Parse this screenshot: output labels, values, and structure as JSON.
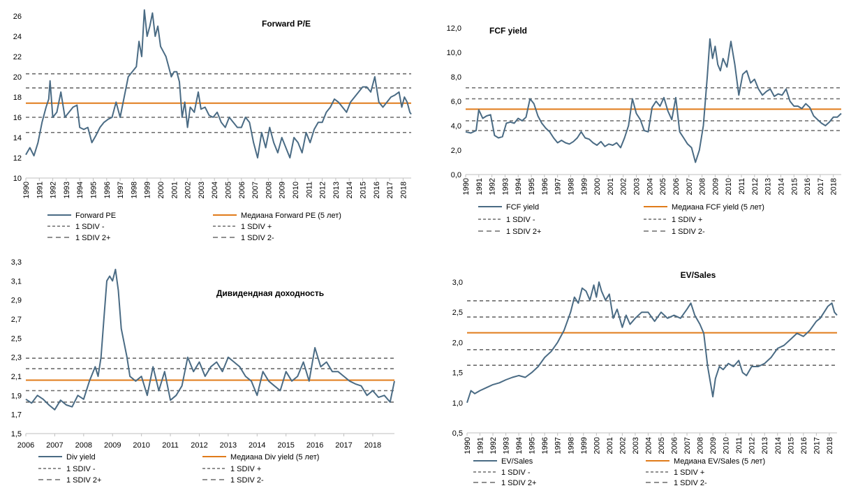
{
  "chart_data": [
    {
      "type": "line",
      "title": "Forward P/E",
      "ylim": [
        10,
        26
      ],
      "y_ticks": [
        "10",
        "12",
        "14",
        "16",
        "18",
        "20",
        "22",
        "24",
        "26"
      ],
      "x_range": [
        1990,
        2018.6
      ],
      "x_ticks": [
        "1990",
        "1991",
        "1992",
        "1993",
        "1994",
        "1995",
        "1996",
        "1997",
        "1998",
        "1999",
        "2000",
        "2001",
        "2002",
        "2003",
        "2004",
        "2005",
        "2006",
        "2007",
        "2008",
        "2009",
        "2010",
        "2011",
        "2012",
        "2013",
        "2014",
        "2015",
        "2016",
        "2017",
        "2018"
      ],
      "x_tick_rotation": "vertical",
      "grid": false,
      "legend_position": "bottom",
      "series": [
        {
          "name": "Forward PE",
          "style": "solid",
          "color": "#4a6b84",
          "x": [
            1990,
            1990.3,
            1990.6,
            1990.9,
            1991.2,
            1991.5,
            1991.7,
            1991.8,
            1992,
            1992.3,
            1992.6,
            1992.9,
            1993.2,
            1993.5,
            1993.8,
            1994,
            1994.3,
            1994.6,
            1994.9,
            1995.2,
            1995.5,
            1995.8,
            1996.1,
            1996.4,
            1996.7,
            1997,
            1997.3,
            1997.6,
            1997.9,
            1998.2,
            1998.4,
            1998.6,
            1998.8,
            1999,
            1999.2,
            1999.4,
            1999.6,
            1999.8,
            2000,
            2000.2,
            2000.4,
            2000.6,
            2000.8,
            2001,
            2001.2,
            2001.4,
            2001.6,
            2001.8,
            2002,
            2002.2,
            2002.5,
            2002.8,
            2003,
            2003.3,
            2003.6,
            2003.9,
            2004.2,
            2004.5,
            2004.8,
            2005.1,
            2005.4,
            2005.7,
            2006,
            2006.3,
            2006.6,
            2006.9,
            2007.2,
            2007.5,
            2007.8,
            2008.1,
            2008.4,
            2008.7,
            2009,
            2009.3,
            2009.6,
            2009.9,
            2010.2,
            2010.5,
            2010.8,
            2011.1,
            2011.4,
            2011.7,
            2012,
            2012.3,
            2012.6,
            2012.9,
            2013.2,
            2013.5,
            2013.8,
            2014.1,
            2014.4,
            2014.7,
            2015,
            2015.3,
            2015.6,
            2015.9,
            2016.2,
            2016.5,
            2016.8,
            2017.1,
            2017.4,
            2017.7,
            2017.9,
            2018.1,
            2018.3,
            2018.5,
            2018.6
          ],
          "y": [
            12.3,
            13,
            12.2,
            13.5,
            15.5,
            17,
            17.8,
            19.6,
            16,
            16.5,
            18.5,
            16,
            16.5,
            17,
            17.2,
            15,
            14.8,
            15,
            13.5,
            14.2,
            15,
            15.5,
            15.8,
            16,
            17.5,
            16,
            18,
            20,
            20.5,
            21,
            23.5,
            22,
            26.6,
            24,
            25,
            26.3,
            24,
            25,
            23,
            22.5,
            22,
            21,
            20,
            20.5,
            20.5,
            19.5,
            16,
            17.5,
            15,
            17,
            16.5,
            18.5,
            16.8,
            17,
            16.2,
            16,
            16.5,
            15.5,
            15,
            16,
            15.5,
            15,
            15,
            16,
            15.5,
            13.5,
            12,
            14.5,
            13,
            15,
            13.5,
            12.5,
            14,
            13,
            12,
            14,
            13.5,
            12.5,
            14.5,
            13.5,
            14.8,
            15.5,
            15.5,
            16.5,
            17,
            17.8,
            17.5,
            17,
            16.5,
            17.5,
            18,
            18.5,
            19,
            19,
            18.5,
            20,
            17.5,
            17,
            17.5,
            18,
            18.2,
            18.5,
            17,
            18,
            17.5,
            16.5,
            16.3
          ]
        },
        {
          "name": "Медиана Forward PE  (5 лет)",
          "style": "median",
          "color": "#e07b1a",
          "value": 17.4
        },
        {
          "name": "1 SDIV -",
          "style": "dash",
          "value": 16.0
        },
        {
          "name": "1 SDIV +",
          "style": "dash",
          "value": 18.9
        },
        {
          "name": "1 SDIV 2+",
          "style": "dash",
          "value": 20.3
        },
        {
          "name": "1 SDIV 2-",
          "style": "dash",
          "value": 14.5
        }
      ]
    },
    {
      "type": "line",
      "title": "FCF yield",
      "ylim": [
        0,
        12
      ],
      "y_ticks": [
        "0,0",
        "2,0",
        "4,0",
        "6,0",
        "8,0",
        "10,0",
        "12,0"
      ],
      "x_range": [
        1990,
        2018.6
      ],
      "x_ticks": [
        "1990",
        "1991",
        "1992",
        "1993",
        "1994",
        "1995",
        "1996",
        "1997",
        "1998",
        "1999",
        "2000",
        "2001",
        "2002",
        "2003",
        "2004",
        "2005",
        "2006",
        "2007",
        "2008",
        "2009",
        "2010",
        "2011",
        "2012",
        "2013",
        "2014",
        "2015",
        "2016",
        "2017",
        "2018"
      ],
      "x_tick_rotation": "vertical",
      "grid": false,
      "legend_position": "bottom",
      "series": [
        {
          "name": "FCF yield",
          "style": "solid",
          "color": "#4a6b84",
          "x": [
            1990,
            1990.4,
            1990.8,
            1991,
            1991.3,
            1991.6,
            1991.9,
            1992.2,
            1992.5,
            1992.8,
            1993.1,
            1993.4,
            1993.7,
            1994,
            1994.3,
            1994.6,
            1994.9,
            1995.2,
            1995.5,
            1995.8,
            1996.1,
            1996.4,
            1996.7,
            1997,
            1997.3,
            1997.6,
            1997.9,
            1998.2,
            1998.5,
            1998.8,
            1999.1,
            1999.4,
            1999.7,
            2000,
            2000.3,
            2000.6,
            2000.9,
            2001.2,
            2001.5,
            2001.8,
            2002.1,
            2002.4,
            2002.7,
            2003,
            2003.3,
            2003.6,
            2003.9,
            2004.2,
            2004.5,
            2004.8,
            2005.1,
            2005.4,
            2005.7,
            2006,
            2006.3,
            2006.6,
            2006.9,
            2007.2,
            2007.5,
            2007.8,
            2008.1,
            2008.4,
            2008.6,
            2008.8,
            2009,
            2009.2,
            2009.4,
            2009.6,
            2009.9,
            2010.2,
            2010.5,
            2010.8,
            2011.1,
            2011.4,
            2011.7,
            2012,
            2012.3,
            2012.6,
            2012.9,
            2013.2,
            2013.5,
            2013.8,
            2014.1,
            2014.4,
            2014.7,
            2015,
            2015.3,
            2015.6,
            2015.9,
            2016.2,
            2016.5,
            2016.8,
            2017.1,
            2017.4,
            2017.7,
            2018,
            2018.3,
            2018.6
          ],
          "y": [
            3.5,
            3.4,
            3.6,
            5.3,
            4.6,
            4.8,
            4.9,
            3.2,
            3.0,
            3.1,
            4.2,
            4.3,
            4.2,
            4.6,
            4.4,
            4.7,
            6.2,
            5.8,
            4.8,
            4.2,
            3.8,
            3.5,
            3.0,
            2.6,
            2.8,
            2.6,
            2.5,
            2.7,
            3.0,
            3.5,
            3.0,
            2.9,
            2.6,
            2.4,
            2.7,
            2.3,
            2.5,
            2.4,
            2.6,
            2.2,
            3.0,
            4.0,
            6.2,
            5.0,
            4.5,
            3.6,
            3.5,
            5.5,
            6.0,
            5.6,
            6.3,
            5.2,
            4.5,
            6.3,
            3.5,
            3.0,
            2.5,
            2.2,
            1.0,
            2.0,
            4.0,
            8.0,
            11.1,
            9.5,
            10.5,
            9.0,
            8.5,
            9.5,
            8.8,
            10.9,
            9.0,
            6.5,
            8.2,
            8.5,
            7.5,
            7.8,
            7.0,
            6.5,
            6.8,
            7.0,
            6.4,
            6.6,
            6.5,
            7.0,
            6.0,
            5.6,
            5.6,
            5.4,
            5.8,
            5.5,
            4.8,
            4.5,
            4.2,
            4.0,
            4.3,
            4.7,
            4.7,
            5.0
          ]
        },
        {
          "name": "Медиана FCF yield  (5 лет)",
          "style": "median",
          "color": "#e07b1a",
          "value": 5.35
        },
        {
          "name": "1 SDIV -",
          "style": "dash",
          "value": 4.4
        },
        {
          "name": "1 SDIV +",
          "style": "dash",
          "value": 6.2
        },
        {
          "name": "1 SDIV 2+",
          "style": "dash",
          "value": 7.1
        },
        {
          "name": "1 SDIV 2-",
          "style": "dash",
          "value": 3.6
        }
      ]
    },
    {
      "type": "line",
      "title": "Дивидендная доходность",
      "ylim": [
        1.5,
        3.3
      ],
      "y_ticks": [
        "1,5",
        "1,7",
        "1,9",
        "2,1",
        "2,3",
        "2,5",
        "2,7",
        "2,9",
        "3,1",
        "3,3"
      ],
      "x_range": [
        2006,
        2018.75
      ],
      "x_ticks": [
        "2006",
        "2007",
        "2008",
        "2009",
        "2010",
        "2011",
        "2012",
        "2013",
        "2014",
        "2015",
        "2016",
        "2017",
        "2018"
      ],
      "x_tick_rotation": "horizontal",
      "grid": false,
      "legend_position": "bottom",
      "series": [
        {
          "name": "Div yield",
          "style": "solid",
          "color": "#4a6b84",
          "x": [
            2006,
            2006.2,
            2006.4,
            2006.6,
            2006.8,
            2007,
            2007.2,
            2007.4,
            2007.6,
            2007.8,
            2008,
            2008.2,
            2008.4,
            2008.5,
            2008.6,
            2008.7,
            2008.8,
            2008.9,
            2009,
            2009.1,
            2009.2,
            2009.3,
            2009.4,
            2009.5,
            2009.6,
            2009.8,
            2010,
            2010.2,
            2010.4,
            2010.6,
            2010.8,
            2011,
            2011.2,
            2011.4,
            2011.6,
            2011.8,
            2012,
            2012.2,
            2012.4,
            2012.6,
            2012.8,
            2013,
            2013.2,
            2013.4,
            2013.6,
            2013.8,
            2014,
            2014.2,
            2014.4,
            2014.6,
            2014.8,
            2015,
            2015.2,
            2015.4,
            2015.6,
            2015.8,
            2016,
            2016.2,
            2016.4,
            2016.6,
            2016.8,
            2017,
            2017.2,
            2017.4,
            2017.6,
            2017.8,
            2018,
            2018.2,
            2018.4,
            2018.6,
            2018.75
          ],
          "y": [
            1.86,
            1.82,
            1.9,
            1.86,
            1.8,
            1.75,
            1.85,
            1.8,
            1.78,
            1.9,
            1.86,
            2.05,
            2.2,
            2.1,
            2.3,
            2.7,
            3.1,
            3.15,
            3.1,
            3.22,
            3.0,
            2.6,
            2.45,
            2.3,
            2.1,
            2.05,
            2.1,
            1.9,
            2.2,
            1.95,
            2.15,
            1.85,
            1.9,
            2.0,
            2.3,
            2.15,
            2.25,
            2.1,
            2.2,
            2.25,
            2.15,
            2.3,
            2.25,
            2.2,
            2.1,
            2.05,
            1.9,
            2.15,
            2.05,
            2.0,
            1.95,
            2.15,
            2.05,
            2.1,
            2.25,
            2.05,
            2.4,
            2.2,
            2.25,
            2.15,
            2.15,
            2.1,
            2.05,
            2.02,
            2.0,
            1.9,
            1.95,
            1.88,
            1.9,
            1.83,
            2.05
          ]
        },
        {
          "name": "Медиана Div yield  (5 лет)",
          "style": "median",
          "color": "#e07b1a",
          "value": 2.06
        },
        {
          "name": "1 SDIV -",
          "style": "dash",
          "value": 1.95
        },
        {
          "name": "1 SDIV +",
          "style": "dash",
          "value": 2.18
        },
        {
          "name": "1 SDIV 2+",
          "style": "dash",
          "value": 2.29
        },
        {
          "name": "1 SDIV 2-",
          "style": "dash",
          "value": 1.83
        }
      ]
    },
    {
      "type": "line",
      "title": "EV/Sales",
      "ylim": [
        0.5,
        3.0
      ],
      "y_ticks": [
        "0,5",
        "1,0",
        "1,5",
        "2,0",
        "2,5",
        "3,0"
      ],
      "x_range": [
        1990,
        2018.6
      ],
      "x_ticks": [
        "1990",
        "1991",
        "1992",
        "1993",
        "1994",
        "1995",
        "1996",
        "1997",
        "1998",
        "1999",
        "2000",
        "2001",
        "2002",
        "2003",
        "2004",
        "2005",
        "2006",
        "2007",
        "2008",
        "2009",
        "2010",
        "2011",
        "2012",
        "2013",
        "2014",
        "2015",
        "2016",
        "2017",
        "2018"
      ],
      "x_tick_rotation": "vertical",
      "grid": false,
      "legend_position": "bottom",
      "series": [
        {
          "name": "EV/Sales",
          "style": "solid",
          "color": "#4a6b84",
          "x": [
            1990,
            1990.3,
            1990.6,
            1991,
            1991.5,
            1992,
            1992.5,
            1993,
            1993.5,
            1994,
            1994.5,
            1995,
            1995.5,
            1996,
            1996.5,
            1997,
            1997.5,
            1998,
            1998.3,
            1998.6,
            1998.9,
            1999.2,
            1999.5,
            1999.8,
            2000,
            2000.2,
            2000.4,
            2000.7,
            2001,
            2001.3,
            2001.6,
            2002,
            2002.3,
            2002.6,
            2003,
            2003.5,
            2004,
            2004.5,
            2005,
            2005.5,
            2006,
            2006.5,
            2007,
            2007.3,
            2007.6,
            2008,
            2008.3,
            2008.6,
            2008.8,
            2009,
            2009.2,
            2009.5,
            2009.8,
            2010.2,
            2010.6,
            2011,
            2011.3,
            2011.6,
            2012,
            2012.5,
            2013,
            2013.5,
            2014,
            2014.5,
            2015,
            2015.5,
            2016,
            2016.5,
            2017,
            2017.3,
            2017.6,
            2017.9,
            2018.2,
            2018.4,
            2018.6
          ],
          "y": [
            1.0,
            1.2,
            1.15,
            1.2,
            1.25,
            1.3,
            1.33,
            1.38,
            1.42,
            1.45,
            1.42,
            1.5,
            1.6,
            1.75,
            1.85,
            2.0,
            2.2,
            2.5,
            2.75,
            2.65,
            2.9,
            2.85,
            2.7,
            2.95,
            2.75,
            3.0,
            2.85,
            2.7,
            2.8,
            2.4,
            2.55,
            2.25,
            2.45,
            2.3,
            2.4,
            2.5,
            2.5,
            2.35,
            2.5,
            2.4,
            2.45,
            2.4,
            2.55,
            2.65,
            2.45,
            2.3,
            2.15,
            1.6,
            1.35,
            1.1,
            1.4,
            1.6,
            1.55,
            1.65,
            1.6,
            1.7,
            1.5,
            1.45,
            1.6,
            1.6,
            1.65,
            1.75,
            1.9,
            1.95,
            2.05,
            2.15,
            2.1,
            2.2,
            2.35,
            2.4,
            2.5,
            2.6,
            2.65,
            2.5,
            2.45
          ]
        },
        {
          "name": "Медиана EV/Sales (5 лет)",
          "style": "median",
          "color": "#e07b1a",
          "value": 2.16
        },
        {
          "name": "1 SDIV -",
          "style": "dash",
          "value": 1.88
        },
        {
          "name": "1 SDIV +",
          "style": "dash",
          "value": 2.42
        },
        {
          "name": "1 SDIV 2+",
          "style": "dash",
          "value": 2.69
        },
        {
          "name": "1 SDIV 2-",
          "style": "dash",
          "value": 1.62
        }
      ]
    }
  ]
}
